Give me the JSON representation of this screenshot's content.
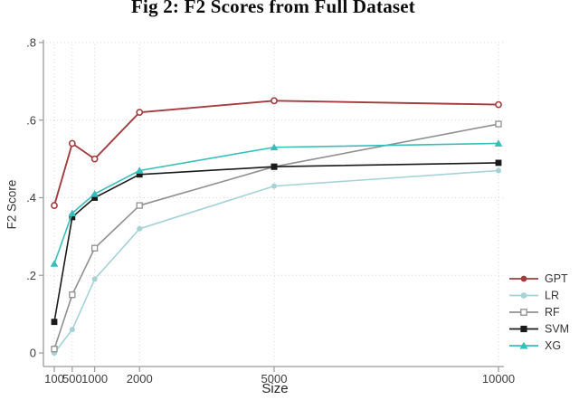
{
  "chart_data": {
    "type": "line",
    "title": "Fig 2: F2 Scores from Full Dataset",
    "xlabel": "Size",
    "ylabel": "F2 Score",
    "x": [
      100,
      500,
      1000,
      2000,
      5000,
      10000
    ],
    "x_tick_labels": [
      "100",
      "500",
      "1000",
      "2000",
      "5000",
      "10000"
    ],
    "y_ticks": [
      0,
      0.2,
      0.4,
      0.6,
      0.8
    ],
    "y_tick_labels": [
      "0",
      ".2",
      ".4",
      ".6",
      ".8"
    ],
    "ylim": [
      0,
      0.8
    ],
    "grid": "dotted",
    "legend_position": "right",
    "series": [
      {
        "name": "GPT",
        "color": "#a33c40",
        "marker": "circle-open",
        "values": [
          0.38,
          0.54,
          0.5,
          0.62,
          0.65,
          0.64
        ]
      },
      {
        "name": "LR",
        "color": "#a6d2d6",
        "marker": "circle",
        "values": [
          0.0,
          0.06,
          0.19,
          0.32,
          0.43,
          0.47
        ]
      },
      {
        "name": "RF",
        "color": "#909090",
        "marker": "square-open",
        "values": [
          0.01,
          0.15,
          0.27,
          0.38,
          0.48,
          0.59
        ]
      },
      {
        "name": "SVM",
        "color": "#1a1a1a",
        "marker": "square",
        "values": [
          0.08,
          0.35,
          0.4,
          0.46,
          0.48,
          0.49
        ]
      },
      {
        "name": "XG",
        "color": "#36bfba",
        "marker": "triangle",
        "values": [
          0.23,
          0.36,
          0.41,
          0.47,
          0.53,
          0.54
        ]
      }
    ],
    "axis_color": "#9a9a9a",
    "grid_color": "#d6d6d6"
  }
}
